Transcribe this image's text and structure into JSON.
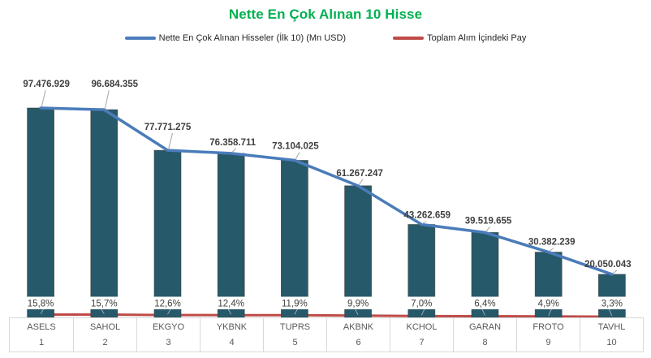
{
  "chart": {
    "title": "Nette En Çok Alınan 10 Hisse",
    "legend": [
      {
        "label": "Nette En Çok Alınan Hisseler (İlk 10) (Mn USD)",
        "color": "#4A7CBA"
      },
      {
        "label": "Toplam Alım İçindeki Pay",
        "color": "#BE4B48"
      }
    ]
  },
  "colors": {
    "title": "#00B050",
    "bar": "#26596A",
    "bar_border": "#404040",
    "line": "#4A7CBA",
    "pct_line": "#BE4B48",
    "value_label": "#404040",
    "pct_label": "#404040",
    "axis_text": "#595959",
    "table_border": "#D9D9D9",
    "leader": "#A6A6A6",
    "legend_text": "#262626"
  },
  "chart_data": {
    "type": "bar",
    "subtype": "combo-bar-with-lines",
    "title": "Nette En Çok Alınan 10 Hisse",
    "categories": [
      "ASELS",
      "SAHOL",
      "EKGYO",
      "YKBNK",
      "TUPRS",
      "AKBNK",
      "KCHOL",
      "GARAN",
      "FROTO",
      "TAVHL"
    ],
    "ranks": [
      "1",
      "2",
      "3",
      "4",
      "5",
      "6",
      "7",
      "8",
      "9",
      "10"
    ],
    "series": [
      {
        "name": "Nette En Çok Alınan Hisseler (İlk 10) (Mn USD)",
        "type": "bar-and-line",
        "values": [
          97476929,
          96684355,
          77771275,
          76358711,
          73104025,
          61267247,
          43262659,
          39519655,
          30382239,
          20050043
        ],
        "labels": [
          "97.476.929",
          "96.684.355",
          "77.771.275",
          "76.358.711",
          "73.104.025",
          "61.267.247",
          "43.262.659",
          "39.519.655",
          "30.382.239",
          "20.050.043"
        ]
      },
      {
        "name": "Toplam Alım İçindeki Pay",
        "type": "line",
        "axis": "secondary",
        "values": [
          15.8,
          15.7,
          12.6,
          12.4,
          11.9,
          9.9,
          7.0,
          6.4,
          4.9,
          3.3
        ],
        "labels": [
          "15,8%",
          "15,7%",
          "12,6%",
          "12,4%",
          "11,9%",
          "9,9%",
          "7,0%",
          "6,4%",
          "4,9%",
          "3,3%"
        ]
      }
    ],
    "xlabel": "",
    "ylabel": "",
    "ylim": [
      0,
      120000000
    ],
    "value_axis_visible": false,
    "grid": false,
    "legend_position": "top"
  }
}
